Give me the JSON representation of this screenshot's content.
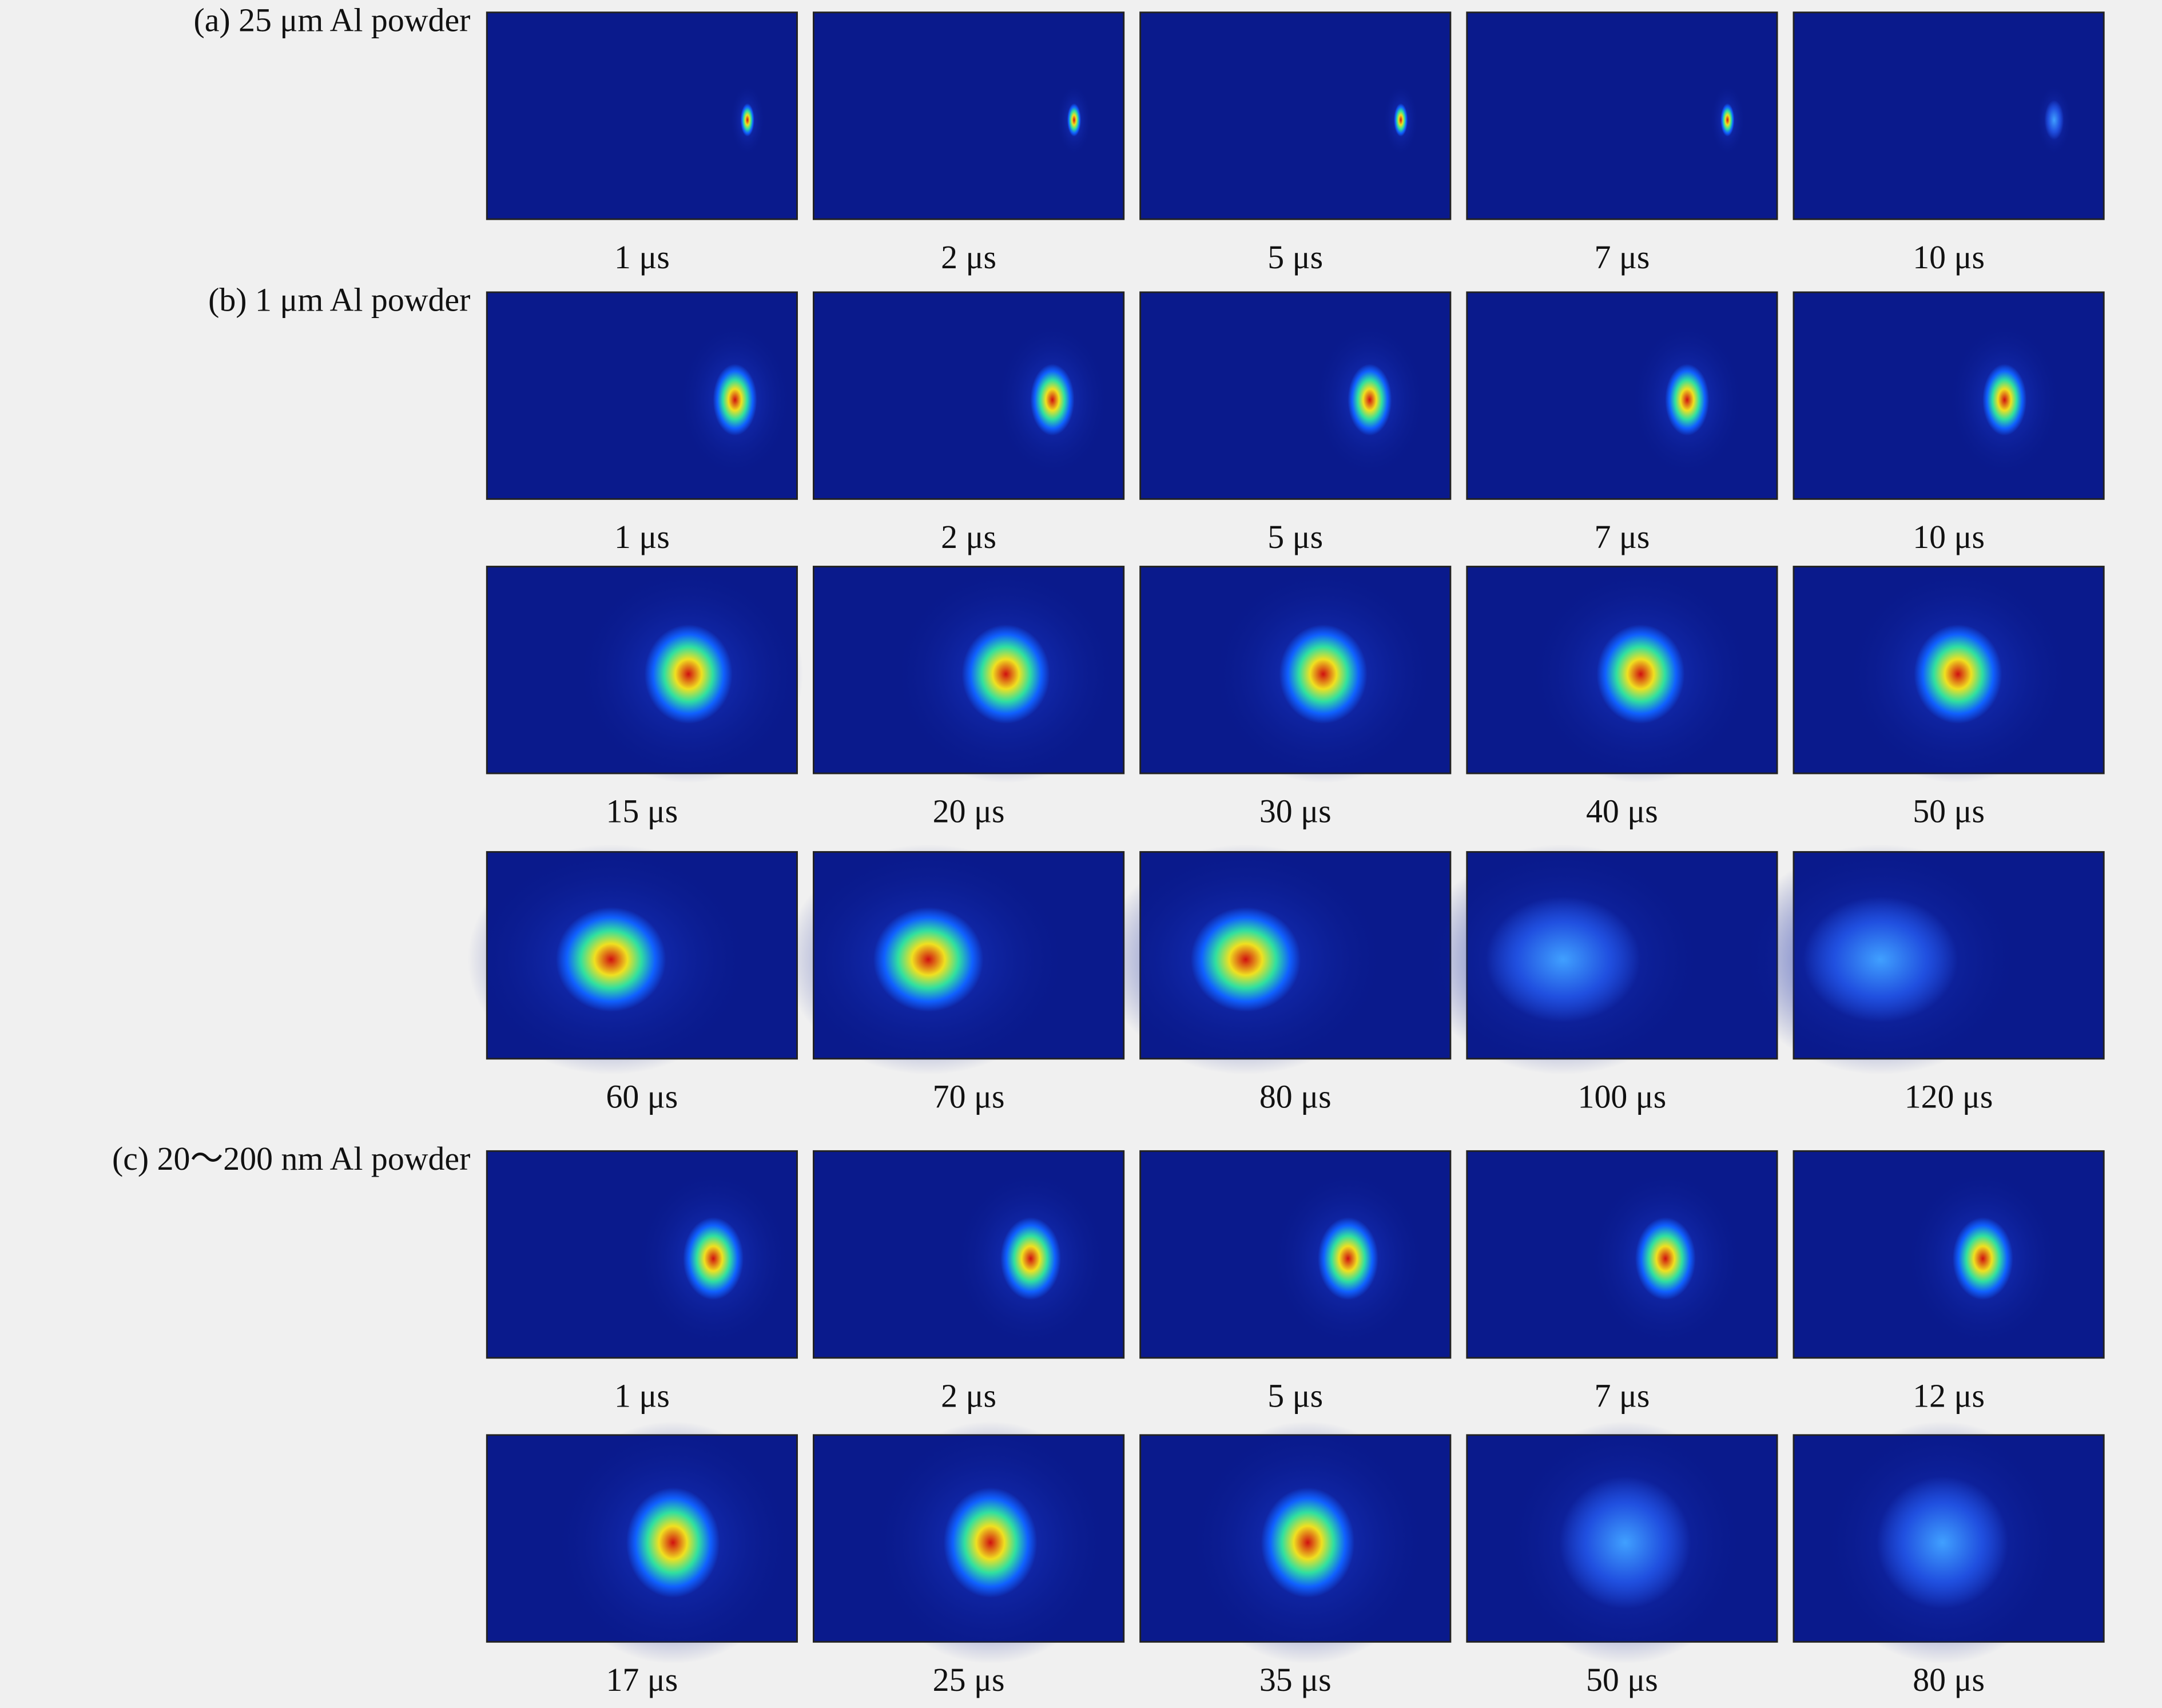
{
  "panels": [
    {
      "label": "(a) 25 μm Al powder",
      "rows": [
        [
          "1 μs",
          "2 μs",
          "5 μs",
          "7 μs",
          "10 μs"
        ]
      ]
    },
    {
      "label": "(b) 1 μm Al powder",
      "rows": [
        [
          "1 μs",
          "2 μs",
          "5 μs",
          "7 μs",
          "10 μs"
        ],
        [
          "15 μs",
          "20 μs",
          "30 μs",
          "40 μs",
          "50 μs"
        ],
        [
          "60 μs",
          "70 μs",
          "80 μs",
          "100 μs",
          "120 μs"
        ]
      ]
    },
    {
      "label": "(c) 20～200 nm Al powder",
      "rows": [
        [
          "1 μs",
          "2 μs",
          "5 μs",
          "7 μs",
          "12 μs"
        ],
        [
          "17 μs",
          "25 μs",
          "35 μs",
          "50 μs",
          "80 μs"
        ]
      ]
    }
  ]
}
